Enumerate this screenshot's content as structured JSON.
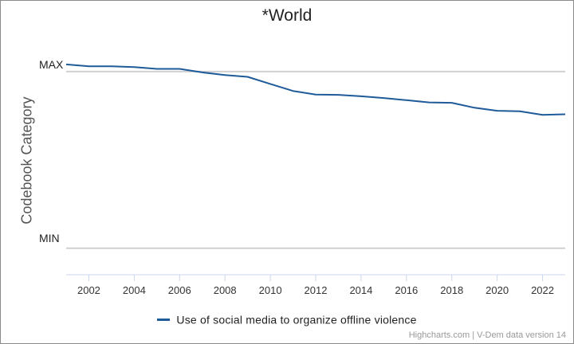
{
  "chart_data": {
    "type": "line",
    "title": "*World",
    "ylabel": "Codebook Category",
    "xlabel": "",
    "categories_y": {
      "max_label": "MAX",
      "min_label": "MIN"
    },
    "ylim": [
      -0.15,
      1.22
    ],
    "max_level": 1.0,
    "min_level": 0.0,
    "xlim": [
      2001,
      2023
    ],
    "x_ticks": [
      2002,
      2004,
      2006,
      2008,
      2010,
      2012,
      2014,
      2016,
      2018,
      2020,
      2022
    ],
    "series": [
      {
        "name": "Use of social media to organize offline violence",
        "color": "#1f5a99",
        "x": [
          2001,
          2002,
          2003,
          2004,
          2005,
          2006,
          2007,
          2008,
          2009,
          2010,
          2011,
          2012,
          2013,
          2014,
          2015,
          2016,
          2017,
          2018,
          2019,
          2020,
          2021,
          2022,
          2023
        ],
        "y": [
          1.04,
          1.03,
          1.03,
          1.025,
          1.015,
          1.015,
          0.995,
          0.98,
          0.97,
          0.93,
          0.89,
          0.87,
          0.868,
          0.86,
          0.85,
          0.838,
          0.825,
          0.823,
          0.795,
          0.778,
          0.775,
          0.755,
          0.758
        ]
      }
    ]
  },
  "legend": {
    "label": "Use of social media to organize offline violence"
  },
  "credits": "Highcharts.com | V-Dem data version 14"
}
